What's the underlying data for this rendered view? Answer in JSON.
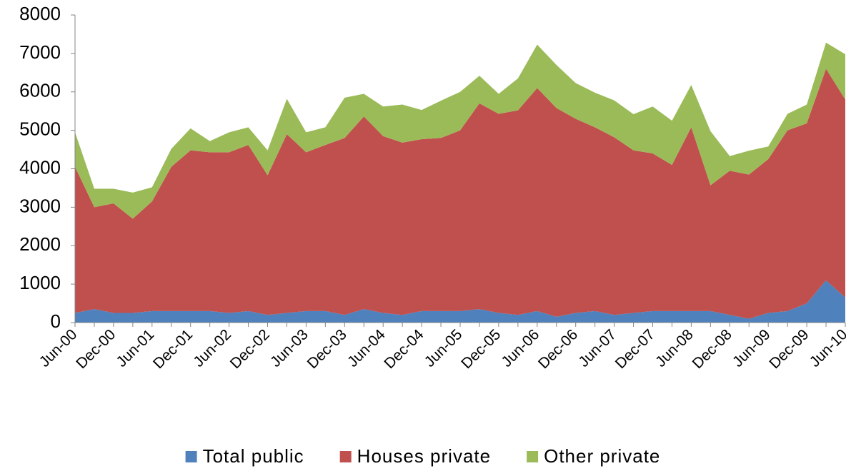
{
  "chart_data": {
    "type": "area",
    "stacked": true,
    "categories": [
      "Jun-00",
      null,
      "Dec-00",
      null,
      "Jun-01",
      null,
      "Dec-01",
      null,
      "Jun-02",
      null,
      "Dec-02",
      null,
      "Jun-03",
      null,
      "Dec-03",
      null,
      "Jun-04",
      null,
      "Dec-04",
      null,
      "Jun-05",
      null,
      "Dec-05",
      null,
      "Jun-06",
      null,
      "Dec-06",
      null,
      "Jun-07",
      null,
      "Dec-07",
      null,
      "Jun-08",
      null,
      "Dec-08",
      null,
      "Jun-09",
      null,
      "Dec-09",
      null,
      "Jun-10"
    ],
    "series": [
      {
        "name": "Total public",
        "color": "#4f81bd",
        "values": [
          250,
          350,
          250,
          250,
          300,
          300,
          300,
          300,
          250,
          300,
          200,
          250,
          300,
          300,
          200,
          350,
          250,
          200,
          300,
          300,
          300,
          350,
          250,
          200,
          300,
          150,
          250,
          300,
          200,
          250,
          300,
          300,
          300,
          300,
          200,
          100,
          250,
          300,
          500,
          1100,
          650
        ]
      },
      {
        "name": "Houses private",
        "color": "#c0504d",
        "values": [
          3800,
          2650,
          2850,
          2450,
          2850,
          3750,
          4180,
          4130,
          4180,
          4320,
          3630,
          4650,
          4130,
          4320,
          4600,
          5010,
          4600,
          4480,
          4470,
          4500,
          4700,
          5350,
          5180,
          5320,
          5800,
          5430,
          5050,
          4780,
          4620,
          4230,
          4100,
          3800,
          4780,
          3270,
          3750,
          3750,
          4000,
          4700,
          4680,
          5500,
          5150
        ]
      },
      {
        "name": "Other private",
        "color": "#9bbb59",
        "values": [
          900,
          480,
          380,
          680,
          370,
          470,
          570,
          290,
          520,
          460,
          650,
          920,
          520,
          460,
          1050,
          590,
          770,
          990,
          760,
          970,
          1000,
          720,
          520,
          830,
          1130,
          1120,
          930,
          900,
          960,
          940,
          1220,
          1150,
          1100,
          1410,
          380,
          620,
          330,
          430,
          490,
          680,
          1180
        ]
      }
    ],
    "ylim": [
      0,
      8000
    ],
    "yticks": [
      0,
      1000,
      2000,
      3000,
      4000,
      5000,
      6000,
      7000,
      8000
    ],
    "grid": false,
    "legend": "bottom"
  }
}
